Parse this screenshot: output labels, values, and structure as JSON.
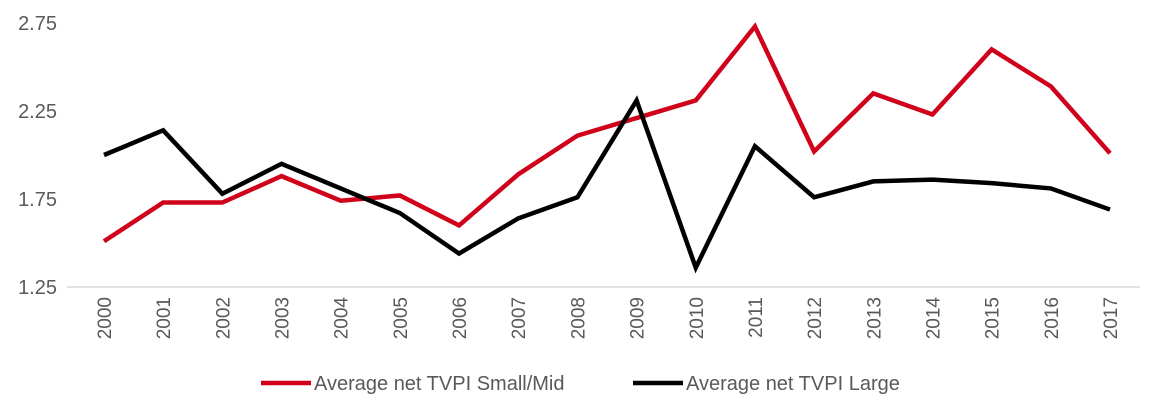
{
  "chart_data": {
    "type": "line",
    "title": "",
    "xlabel": "",
    "ylabel": "",
    "categories": [
      "2000",
      "2001",
      "2002",
      "2003",
      "2004",
      "2005",
      "2006",
      "2007",
      "2008",
      "2009",
      "2010",
      "2011",
      "2012",
      "2013",
      "2014",
      "2015",
      "2016",
      "2017"
    ],
    "ylim": [
      1.25,
      2.75
    ],
    "yticks": [
      "1.25",
      "1.75",
      "2.25",
      "2.75"
    ],
    "grid": false,
    "legend_position": "bottom",
    "series": [
      {
        "name": "Average net TVPI Small/Mid",
        "color": "#d0021b",
        "values": [
          1.51,
          1.73,
          1.73,
          1.88,
          1.74,
          1.77,
          1.6,
          1.89,
          2.11,
          2.21,
          2.31,
          2.73,
          2.02,
          2.35,
          2.23,
          2.6,
          2.39,
          2.01
        ]
      },
      {
        "name": "Average net TVPI Large",
        "color": "#000000",
        "values": [
          2.0,
          2.14,
          1.78,
          1.95,
          1.81,
          1.67,
          1.44,
          1.64,
          1.76,
          2.31,
          1.36,
          2.05,
          1.76,
          1.85,
          1.86,
          1.84,
          1.81,
          1.69
        ]
      }
    ]
  }
}
